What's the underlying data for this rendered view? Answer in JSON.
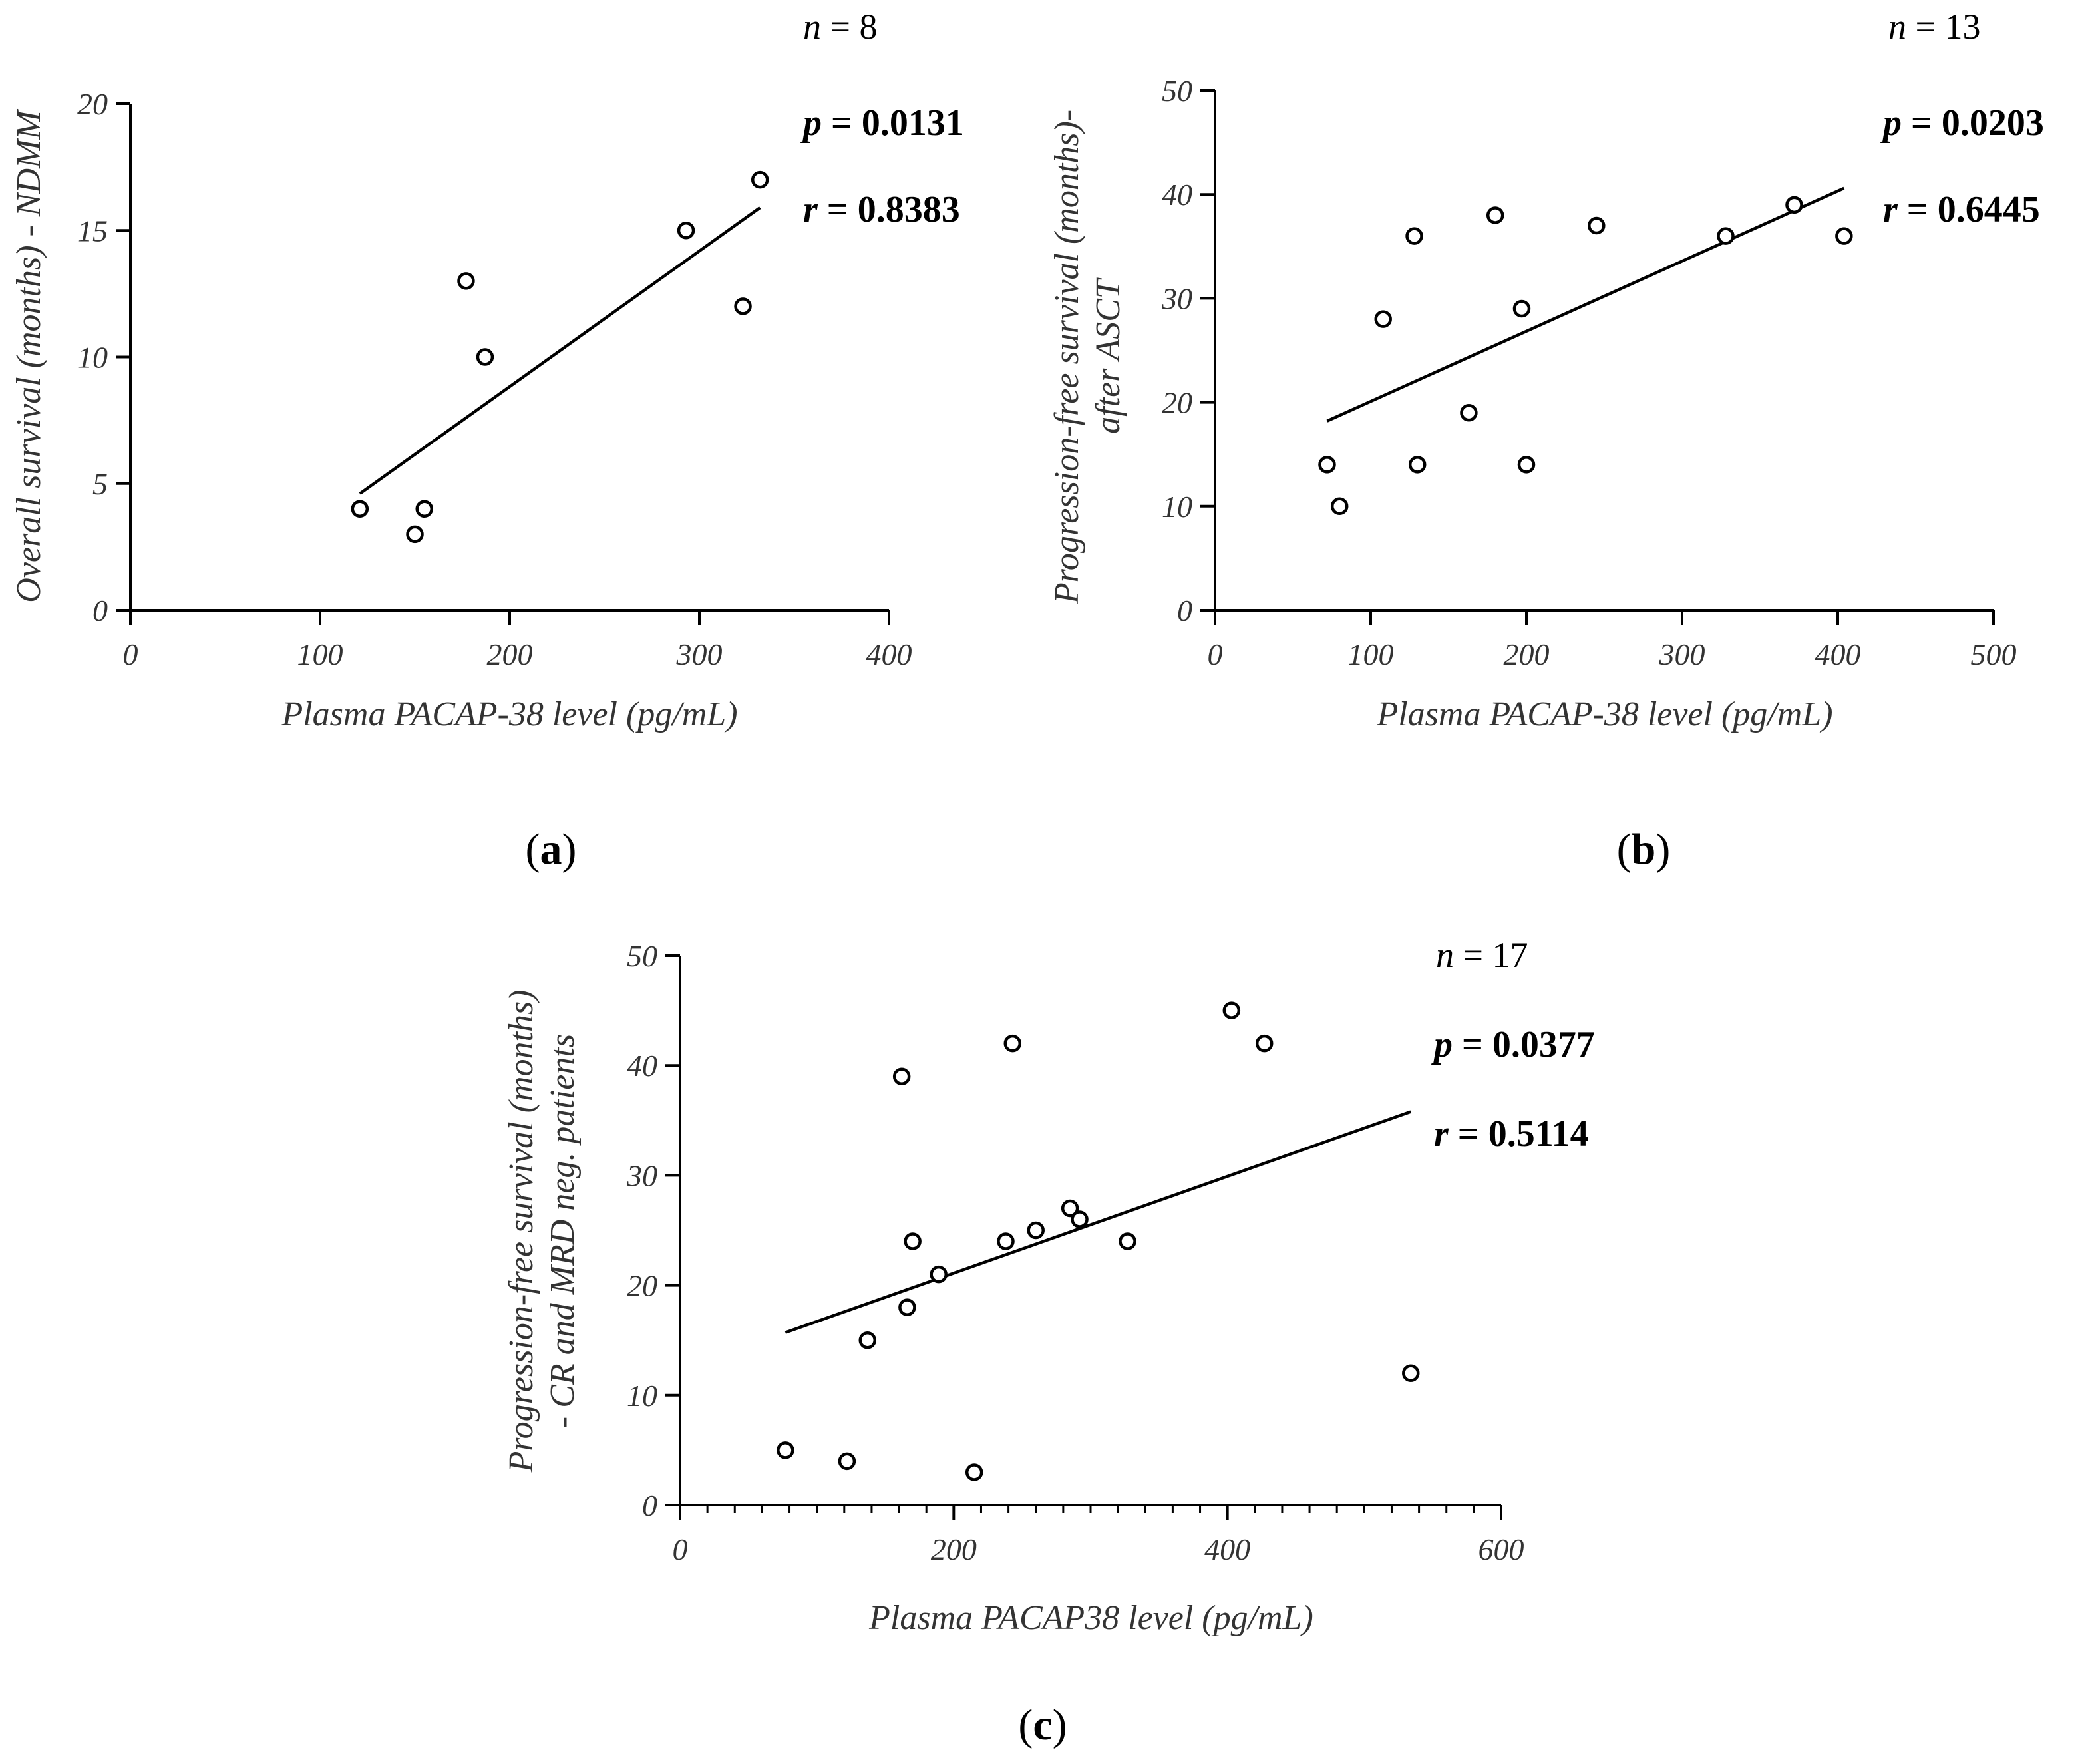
{
  "chart_data": [
    {
      "type": "scatter",
      "panel_label": "a",
      "xlabel": "Plasma PACAP-38 level (pg/mL)",
      "ylabel": "Overall survival (months) - NDMM",
      "xlim": [
        0,
        400
      ],
      "ylim": [
        0,
        20
      ],
      "xticks": [
        0,
        100,
        200,
        300,
        400
      ],
      "yticks": [
        0,
        5,
        10,
        15,
        20
      ],
      "points": [
        {
          "x": 121,
          "y": 4
        },
        {
          "x": 150,
          "y": 3
        },
        {
          "x": 155,
          "y": 4
        },
        {
          "x": 177,
          "y": 13
        },
        {
          "x": 187,
          "y": 10
        },
        {
          "x": 293,
          "y": 15
        },
        {
          "x": 323,
          "y": 12
        },
        {
          "x": 332,
          "y": 17
        }
      ],
      "fit_line": [
        {
          "x": 121,
          "y": 4.6
        },
        {
          "x": 332,
          "y": 15.9
        }
      ],
      "stats": {
        "n_label": "n",
        "n_value": " = 8",
        "p_label": "p",
        "p_value": " = 0.0131",
        "r_label": "r",
        "r_value": " = 0.8383"
      }
    },
    {
      "type": "scatter",
      "panel_label": "b",
      "xlabel": "Plasma PACAP-38 level (pg/mL)",
      "ylabel_line1": "Progression-free survival (months)-",
      "ylabel_line2": "after ASCT",
      "xlim": [
        0,
        500
      ],
      "ylim": [
        0,
        50
      ],
      "xticks": [
        0,
        100,
        200,
        300,
        400,
        500
      ],
      "yticks": [
        0,
        10,
        20,
        30,
        40,
        50
      ],
      "points": [
        {
          "x": 72,
          "y": 14
        },
        {
          "x": 80,
          "y": 10
        },
        {
          "x": 108,
          "y": 28
        },
        {
          "x": 128,
          "y": 36
        },
        {
          "x": 130,
          "y": 14
        },
        {
          "x": 163,
          "y": 19
        },
        {
          "x": 180,
          "y": 38
        },
        {
          "x": 197,
          "y": 29
        },
        {
          "x": 200,
          "y": 14
        },
        {
          "x": 245,
          "y": 37
        },
        {
          "x": 328,
          "y": 36
        },
        {
          "x": 372,
          "y": 39
        },
        {
          "x": 404,
          "y": 36
        }
      ],
      "fit_line": [
        {
          "x": 72,
          "y": 18.2
        },
        {
          "x": 404,
          "y": 40.6
        }
      ],
      "stats": {
        "n_label": "n",
        "n_value": " = 13",
        "p_label": "p",
        "p_value": " = 0.0203",
        "r_label": "r",
        "r_value": " = 0.6445"
      }
    },
    {
      "type": "scatter",
      "panel_label": "c",
      "xlabel": "Plasma PACAP38 level (pg/mL)",
      "ylabel_line1": "Progression-free survival (months)",
      "ylabel_line2": "- CR and MRD neg. patients",
      "xlim": [
        0,
        600
      ],
      "ylim": [
        0,
        50
      ],
      "xticks": [
        0,
        200,
        400,
        600
      ],
      "yticks": [
        0,
        10,
        20,
        30,
        40,
        50
      ],
      "minor_xtick_step": 20,
      "points": [
        {
          "x": 77,
          "y": 5
        },
        {
          "x": 122,
          "y": 4
        },
        {
          "x": 137,
          "y": 15
        },
        {
          "x": 162,
          "y": 39
        },
        {
          "x": 166,
          "y": 18
        },
        {
          "x": 170,
          "y": 24
        },
        {
          "x": 189,
          "y": 21
        },
        {
          "x": 215,
          "y": 3
        },
        {
          "x": 238,
          "y": 24
        },
        {
          "x": 243,
          "y": 42
        },
        {
          "x": 260,
          "y": 25
        },
        {
          "x": 285,
          "y": 27
        },
        {
          "x": 292,
          "y": 26
        },
        {
          "x": 327,
          "y": 24
        },
        {
          "x": 403,
          "y": 45
        },
        {
          "x": 427,
          "y": 42
        },
        {
          "x": 534,
          "y": 12
        }
      ],
      "fit_line": [
        {
          "x": 77,
          "y": 15.7
        },
        {
          "x": 534,
          "y": 35.8
        }
      ],
      "stats": {
        "n_label": "n",
        "n_value": " = 17",
        "p_label": "p",
        "p_value": " = 0.0377",
        "r_label": "r",
        "r_value": " = 0.5114"
      }
    }
  ]
}
